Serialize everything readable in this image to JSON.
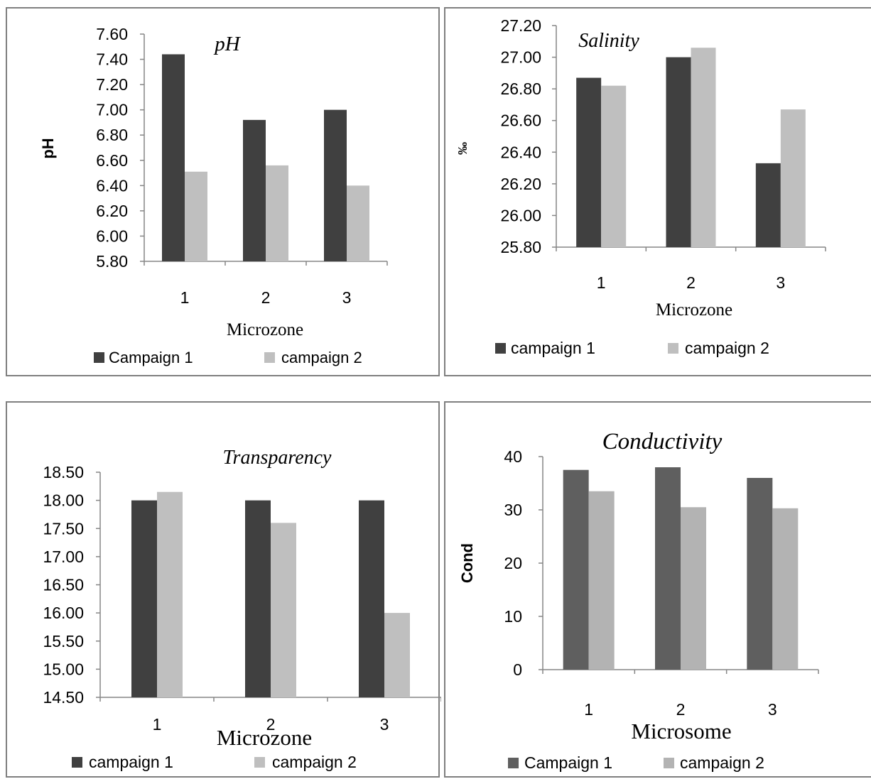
{
  "colors": {
    "dark": "#404040",
    "light": "#bfbfbf",
    "dark_cond": "#5f5f5f",
    "light_cond": "#b3b3b3",
    "axis": "#868686"
  },
  "chart_data": [
    {
      "type": "bar",
      "title": "pH",
      "ylabel": "pH",
      "xlabel": "Microzone",
      "categories": [
        "1",
        "2",
        "3"
      ],
      "ylim": [
        5.8,
        7.6
      ],
      "yticks": [
        "7.60",
        "7.40",
        "7.20",
        "7.00",
        "6.80",
        "6.60",
        "6.40",
        "6.20",
        "6.00",
        "5.80"
      ],
      "series": [
        {
          "name": "Campaign 1",
          "values": [
            7.44,
            6.92,
            7.0
          ]
        },
        {
          "name": "campaign 2",
          "values": [
            6.51,
            6.56,
            6.4
          ]
        }
      ],
      "legend": "bottom"
    },
    {
      "type": "bar",
      "title": "Salinity",
      "ylabel": "‰",
      "xlabel": "Microzone",
      "categories": [
        "1",
        "2",
        "3"
      ],
      "ylim": [
        25.8,
        27.2
      ],
      "yticks": [
        "27.20",
        "27.00",
        "26.80",
        "26.60",
        "26.40",
        "26.20",
        "26.00",
        "25.80"
      ],
      "series": [
        {
          "name": "campaign  1",
          "values": [
            26.87,
            27.0,
            26.33
          ]
        },
        {
          "name": "campaign 2",
          "values": [
            26.82,
            27.06,
            26.67
          ]
        }
      ],
      "legend": "bottom"
    },
    {
      "type": "bar",
      "title": "Transparency",
      "ylabel": "",
      "xlabel": "Microzone",
      "categories": [
        "1",
        "2",
        "3"
      ],
      "ylim": [
        14.5,
        18.5
      ],
      "yticks": [
        "18.50",
        "18.00",
        "17.50",
        "17.00",
        "16.50",
        "16.00",
        "15.50",
        "15.00",
        "14.50"
      ],
      "series": [
        {
          "name": "campaign 1",
          "values": [
            18.0,
            18.0,
            18.0
          ]
        },
        {
          "name": "campaign 2",
          "values": [
            18.15,
            17.6,
            16.0
          ]
        }
      ],
      "legend": "bottom"
    },
    {
      "type": "bar",
      "title": "Conductivity",
      "ylabel": "Cond",
      "xlabel": "Microsome",
      "categories": [
        "1",
        "2",
        "3"
      ],
      "ylim": [
        0,
        40
      ],
      "yticks": [
        "40",
        "30",
        "20",
        "10",
        "0"
      ],
      "series": [
        {
          "name": "Campaign 1",
          "values": [
            37.5,
            38.0,
            36.0
          ]
        },
        {
          "name": "campaign 2",
          "values": [
            33.5,
            30.5,
            30.3
          ]
        }
      ],
      "legend": "bottom"
    }
  ]
}
